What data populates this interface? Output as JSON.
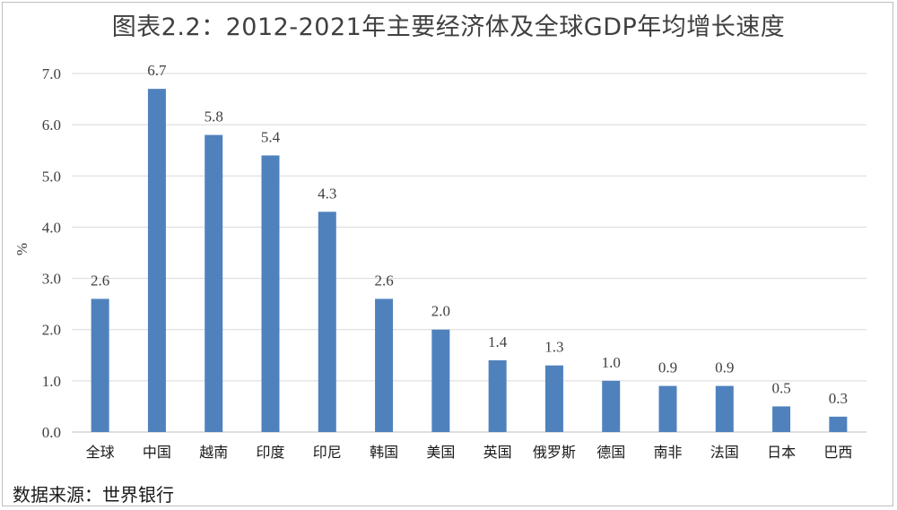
{
  "chart_data": {
    "type": "bar",
    "title": "图表2.2：2012-2021年主要经济体及全球GDP年均增长速度",
    "ylabel": "%",
    "xlabel": "",
    "categories": [
      "全球",
      "中国",
      "越南",
      "印度",
      "印尼",
      "韩国",
      "美国",
      "英国",
      "俄罗斯",
      "德国",
      "南非",
      "法国",
      "日本",
      "巴西"
    ],
    "values": [
      2.6,
      6.7,
      5.8,
      5.4,
      4.3,
      2.6,
      2.0,
      1.4,
      1.3,
      1.0,
      0.9,
      0.9,
      0.5,
      0.3
    ],
    "value_labels": [
      "2.6",
      "6.7",
      "5.8",
      "5.4",
      "4.3",
      "2.6",
      "2.0",
      "1.4",
      "1.3",
      "1.0",
      "0.9",
      "0.9",
      "0.5",
      "0.3"
    ],
    "ylim": [
      0,
      7.0
    ],
    "yticks": [
      "0.0",
      "1.0",
      "2.0",
      "3.0",
      "4.0",
      "5.0",
      "6.0",
      "7.0"
    ],
    "grid": true,
    "bar_color": "#4f81bd"
  },
  "source": "数据来源：世界银行"
}
